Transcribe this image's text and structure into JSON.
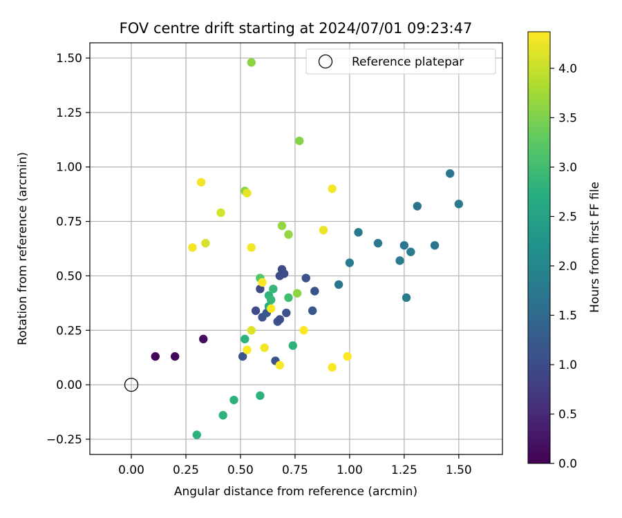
{
  "chart_data": {
    "type": "scatter",
    "title": "FOV centre drift starting at 2024/07/01 09:23:47",
    "xlabel": "Angular distance from reference (arcmin)",
    "ylabel": "Rotation from reference (arcmin)",
    "xlim": [
      -0.19,
      1.7
    ],
    "ylim": [
      -0.32,
      1.57
    ],
    "xticks": [
      0.0,
      0.25,
      0.5,
      0.75,
      1.0,
      1.25,
      1.5
    ],
    "xtick_labels": [
      "0.00",
      "0.25",
      "0.50",
      "0.75",
      "1.00",
      "1.25",
      "1.50"
    ],
    "yticks": [
      -0.25,
      0.0,
      0.25,
      0.5,
      0.75,
      1.0,
      1.25,
      1.5
    ],
    "ytick_labels": [
      "−0.25",
      "0.00",
      "0.25",
      "0.50",
      "0.75",
      "1.00",
      "1.25",
      "1.50"
    ],
    "grid": true,
    "legend": {
      "placement": "top-right",
      "entries": [
        "Reference platepar"
      ]
    },
    "reference_point": {
      "x": 0.0,
      "y": 0.0
    },
    "colorbar": {
      "label": "Hours from first FF file",
      "colormap": "viridis",
      "range": [
        0.0,
        4.37
      ],
      "ticks": [
        0.0,
        0.5,
        1.0,
        1.5,
        2.0,
        2.5,
        3.0,
        3.5,
        4.0
      ],
      "tick_labels": [
        "0.0",
        "0.5",
        "1.0",
        "1.5",
        "2.0",
        "2.5",
        "3.0",
        "3.5",
        "4.0"
      ]
    },
    "points": [
      {
        "x": 0.11,
        "y": 0.13,
        "c": 0.05
      },
      {
        "x": 0.2,
        "y": 0.13,
        "c": 0.08
      },
      {
        "x": 0.33,
        "y": 0.21,
        "c": 0.15
      },
      {
        "x": 0.51,
        "y": 0.13,
        "c": 1.1
      },
      {
        "x": 0.57,
        "y": 0.34,
        "c": 1.0
      },
      {
        "x": 0.59,
        "y": 0.44,
        "c": 1.0
      },
      {
        "x": 0.6,
        "y": 0.31,
        "c": 1.1
      },
      {
        "x": 0.62,
        "y": 0.33,
        "c": 1.2
      },
      {
        "x": 0.66,
        "y": 0.11,
        "c": 1.1
      },
      {
        "x": 0.67,
        "y": 0.29,
        "c": 1.1
      },
      {
        "x": 0.68,
        "y": 0.3,
        "c": 1.0
      },
      {
        "x": 0.68,
        "y": 0.5,
        "c": 1.0
      },
      {
        "x": 0.69,
        "y": 0.53,
        "c": 1.0
      },
      {
        "x": 0.7,
        "y": 0.51,
        "c": 1.0
      },
      {
        "x": 0.71,
        "y": 0.33,
        "c": 1.1
      },
      {
        "x": 0.8,
        "y": 0.49,
        "c": 1.1
      },
      {
        "x": 0.83,
        "y": 0.34,
        "c": 1.2
      },
      {
        "x": 0.84,
        "y": 0.43,
        "c": 1.1
      },
      {
        "x": 0.95,
        "y": 0.46,
        "c": 1.7
      },
      {
        "x": 1.0,
        "y": 0.56,
        "c": 1.8
      },
      {
        "x": 1.04,
        "y": 0.7,
        "c": 1.75
      },
      {
        "x": 1.13,
        "y": 0.65,
        "c": 1.75
      },
      {
        "x": 1.23,
        "y": 0.57,
        "c": 1.8
      },
      {
        "x": 1.25,
        "y": 0.64,
        "c": 1.7
      },
      {
        "x": 1.26,
        "y": 0.4,
        "c": 1.8
      },
      {
        "x": 1.28,
        "y": 0.61,
        "c": 1.8
      },
      {
        "x": 1.31,
        "y": 0.82,
        "c": 1.65
      },
      {
        "x": 1.39,
        "y": 0.64,
        "c": 1.7
      },
      {
        "x": 1.46,
        "y": 0.97,
        "c": 1.75
      },
      {
        "x": 1.5,
        "y": 0.83,
        "c": 1.8
      },
      {
        "x": 0.3,
        "y": -0.23,
        "c": 2.8
      },
      {
        "x": 0.42,
        "y": -0.14,
        "c": 2.8
      },
      {
        "x": 0.47,
        "y": -0.07,
        "c": 2.8
      },
      {
        "x": 0.52,
        "y": 0.21,
        "c": 2.8
      },
      {
        "x": 0.59,
        "y": -0.05,
        "c": 2.8
      },
      {
        "x": 0.63,
        "y": 0.41,
        "c": 2.8
      },
      {
        "x": 0.63,
        "y": 0.36,
        "c": 2.7
      },
      {
        "x": 0.64,
        "y": 0.39,
        "c": 2.9
      },
      {
        "x": 0.65,
        "y": 0.44,
        "c": 2.9
      },
      {
        "x": 0.72,
        "y": 0.4,
        "c": 3.0
      },
      {
        "x": 0.74,
        "y": 0.18,
        "c": 2.8
      },
      {
        "x": 0.59,
        "y": 0.49,
        "c": 3.2
      },
      {
        "x": 0.52,
        "y": 0.89,
        "c": 3.6
      },
      {
        "x": 0.55,
        "y": 1.48,
        "c": 3.6
      },
      {
        "x": 0.69,
        "y": 0.73,
        "c": 3.65
      },
      {
        "x": 0.72,
        "y": 0.69,
        "c": 3.65
      },
      {
        "x": 0.76,
        "y": 0.42,
        "c": 3.6
      },
      {
        "x": 0.77,
        "y": 1.12,
        "c": 3.55
      },
      {
        "x": 0.28,
        "y": 0.63,
        "c": 4.3
      },
      {
        "x": 0.32,
        "y": 0.93,
        "c": 4.3
      },
      {
        "x": 0.34,
        "y": 0.65,
        "c": 4.1
      },
      {
        "x": 0.41,
        "y": 0.79,
        "c": 4.1
      },
      {
        "x": 0.53,
        "y": 0.88,
        "c": 4.2
      },
      {
        "x": 0.53,
        "y": 0.16,
        "c": 4.35
      },
      {
        "x": 0.55,
        "y": 0.25,
        "c": 4.15
      },
      {
        "x": 0.55,
        "y": 0.63,
        "c": 4.3
      },
      {
        "x": 0.6,
        "y": 0.47,
        "c": 4.35
      },
      {
        "x": 0.61,
        "y": 0.17,
        "c": 4.3
      },
      {
        "x": 0.64,
        "y": 0.35,
        "c": 4.35
      },
      {
        "x": 0.68,
        "y": 0.09,
        "c": 4.35
      },
      {
        "x": 0.79,
        "y": 0.25,
        "c": 4.35
      },
      {
        "x": 0.88,
        "y": 0.71,
        "c": 4.25
      },
      {
        "x": 0.92,
        "y": 0.9,
        "c": 4.3
      },
      {
        "x": 0.92,
        "y": 0.08,
        "c": 4.35
      },
      {
        "x": 0.99,
        "y": 0.13,
        "c": 4.35
      }
    ]
  }
}
